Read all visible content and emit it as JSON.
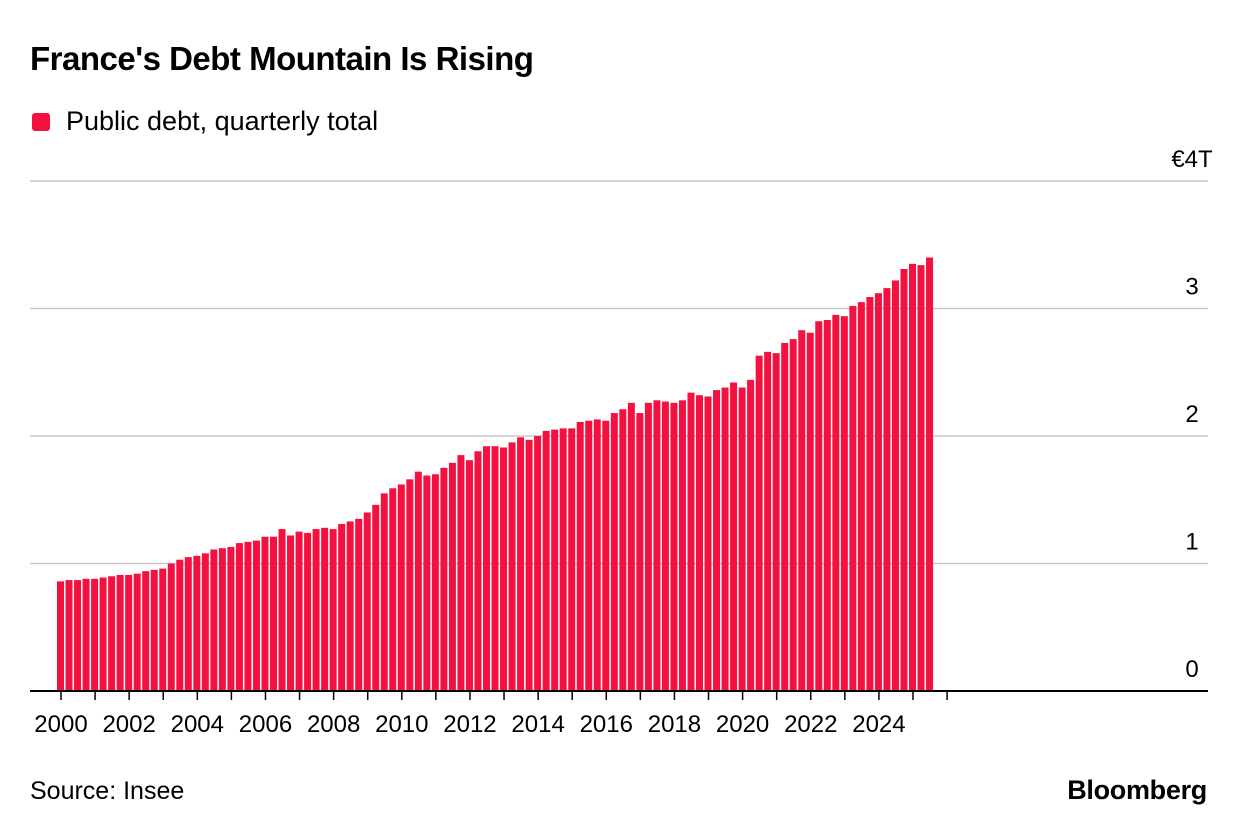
{
  "title": "France's Debt Mountain Is Rising",
  "legend": {
    "label": "Public debt, quarterly total",
    "color": "#f5113f"
  },
  "source": "Source: Insee",
  "brand": "Bloomberg",
  "chart_data": {
    "type": "bar",
    "title": "France's Debt Mountain Is Rising",
    "xlabel": "",
    "ylabel": "",
    "ylim": [
      0,
      4
    ],
    "grid": true,
    "legend_position": "top-left",
    "y_ticks": [
      {
        "value": 4,
        "label": "€4T"
      },
      {
        "value": 3,
        "label": "3"
      },
      {
        "value": 2,
        "label": "2"
      },
      {
        "value": 1,
        "label": "1"
      },
      {
        "value": 0,
        "label": "0"
      }
    ],
    "x_ticks": [
      "2000",
      "2002",
      "2004",
      "2006",
      "2008",
      "2010",
      "2012",
      "2014",
      "2016",
      "2018",
      "2020",
      "2022",
      "2024"
    ],
    "first_year": 2000,
    "series": [
      {
        "name": "Public debt, quarterly total",
        "color": "#f5113f",
        "values": [
          0.86,
          0.87,
          0.87,
          0.88,
          0.88,
          0.89,
          0.9,
          0.91,
          0.91,
          0.92,
          0.94,
          0.95,
          0.96,
          1.0,
          1.03,
          1.05,
          1.06,
          1.08,
          1.11,
          1.12,
          1.13,
          1.16,
          1.17,
          1.18,
          1.21,
          1.21,
          1.27,
          1.22,
          1.25,
          1.24,
          1.27,
          1.28,
          1.27,
          1.31,
          1.33,
          1.35,
          1.4,
          1.46,
          1.55,
          1.59,
          1.62,
          1.66,
          1.72,
          1.69,
          1.7,
          1.75,
          1.79,
          1.85,
          1.81,
          1.88,
          1.92,
          1.92,
          1.91,
          1.95,
          1.99,
          1.97,
          2.0,
          2.04,
          2.05,
          2.06,
          2.06,
          2.11,
          2.12,
          2.13,
          2.12,
          2.18,
          2.21,
          2.26,
          2.18,
          2.26,
          2.28,
          2.27,
          2.26,
          2.28,
          2.34,
          2.32,
          2.31,
          2.36,
          2.38,
          2.42,
          2.38,
          2.44,
          2.63,
          2.66,
          2.65,
          2.73,
          2.76,
          2.83,
          2.81,
          2.9,
          2.91,
          2.95,
          2.94,
          3.02,
          3.05,
          3.09,
          3.12,
          3.16,
          3.22,
          3.31,
          3.35,
          3.34,
          3.4
        ]
      }
    ]
  }
}
